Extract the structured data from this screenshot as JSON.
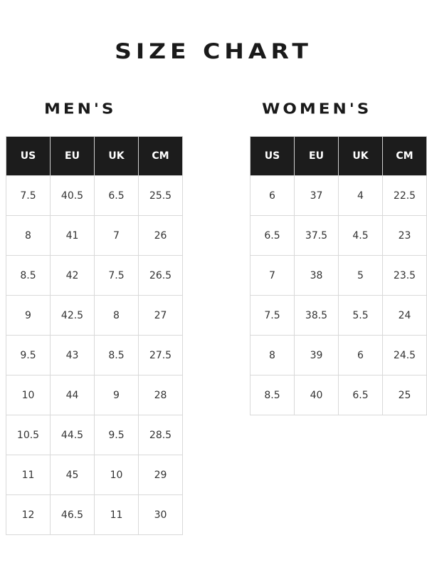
{
  "title": "SIZE CHART",
  "mens": {
    "heading": "MEN'S",
    "columns": [
      "US",
      "EU",
      "UK",
      "CM"
    ],
    "rows": [
      [
        "7.5",
        "40.5",
        "6.5",
        "25.5"
      ],
      [
        "8",
        "41",
        "7",
        "26"
      ],
      [
        "8.5",
        "42",
        "7.5",
        "26.5"
      ],
      [
        "9",
        "42.5",
        "8",
        "27"
      ],
      [
        "9.5",
        "43",
        "8.5",
        "27.5"
      ],
      [
        "10",
        "44",
        "9",
        "28"
      ],
      [
        "10.5",
        "44.5",
        "9.5",
        "28.5"
      ],
      [
        "11",
        "45",
        "10",
        "29"
      ],
      [
        "12",
        "46.5",
        "11",
        "30"
      ]
    ]
  },
  "womens": {
    "heading": "WOMEN'S",
    "columns": [
      "US",
      "EU",
      "UK",
      "CM"
    ],
    "rows": [
      [
        "6",
        "37",
        "4",
        "22.5"
      ],
      [
        "6.5",
        "37.5",
        "4.5",
        "23"
      ],
      [
        "7",
        "38",
        "5",
        "23.5"
      ],
      [
        "7.5",
        "38.5",
        "5.5",
        "24"
      ],
      [
        "8",
        "39",
        "6",
        "24.5"
      ],
      [
        "8.5",
        "40",
        "6.5",
        "25"
      ]
    ]
  }
}
